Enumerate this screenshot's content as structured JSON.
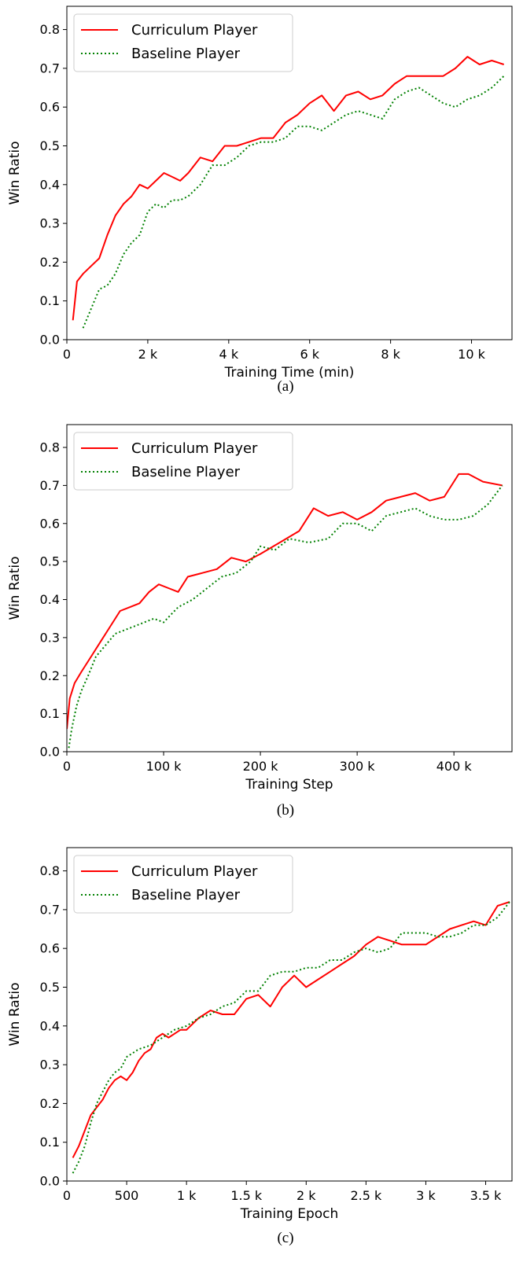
{
  "chart_data": [
    {
      "type": "line",
      "caption": "(a)",
      "xlabel": "Training Time (min)",
      "ylabel": "Win Ratio",
      "xlim": [
        0,
        11000
      ],
      "ylim": [
        0,
        0.86
      ],
      "xticks": [
        0,
        2000,
        4000,
        6000,
        8000,
        10000
      ],
      "xtick_labels": [
        "0",
        "2 k",
        "4 k",
        "6 k",
        "8 k",
        "10 k"
      ],
      "yticks": [
        0.0,
        0.1,
        0.2,
        0.3,
        0.4,
        0.5,
        0.6,
        0.7,
        0.8
      ],
      "ytick_labels": [
        "0.0",
        "0.1",
        "0.2",
        "0.3",
        "0.4",
        "0.5",
        "0.6",
        "0.7",
        "0.8"
      ],
      "grid": false,
      "legend_position": "top-left",
      "series": [
        {
          "name": "Curriculum Player",
          "color": "#ff0000",
          "style": "solid",
          "x": [
            150,
            250,
            400,
            600,
            800,
            1000,
            1200,
            1400,
            1600,
            1800,
            2000,
            2200,
            2400,
            2600,
            2800,
            3000,
            3300,
            3600,
            3900,
            4200,
            4500,
            4800,
            5100,
            5400,
            5700,
            6000,
            6300,
            6600,
            6900,
            7200,
            7500,
            7800,
            8100,
            8400,
            8700,
            9000,
            9300,
            9600,
            9900,
            10200,
            10500,
            10800
          ],
          "y": [
            0.05,
            0.15,
            0.17,
            0.19,
            0.21,
            0.27,
            0.32,
            0.35,
            0.37,
            0.4,
            0.39,
            0.41,
            0.43,
            0.42,
            0.41,
            0.43,
            0.47,
            0.46,
            0.5,
            0.5,
            0.51,
            0.52,
            0.52,
            0.56,
            0.58,
            0.61,
            0.63,
            0.59,
            0.63,
            0.64,
            0.62,
            0.63,
            0.66,
            0.68,
            0.68,
            0.68,
            0.68,
            0.7,
            0.73,
            0.71,
            0.72,
            0.71
          ]
        },
        {
          "name": "Baseline Player",
          "color": "#008000",
          "style": "dotted",
          "x": [
            400,
            600,
            800,
            1000,
            1200,
            1400,
            1600,
            1800,
            2000,
            2200,
            2400,
            2600,
            2800,
            3000,
            3300,
            3600,
            3900,
            4200,
            4500,
            4800,
            5100,
            5400,
            5700,
            6000,
            6300,
            6600,
            6900,
            7200,
            7500,
            7800,
            8100,
            8400,
            8700,
            9000,
            9300,
            9600,
            9900,
            10200,
            10500,
            10800
          ],
          "y": [
            0.03,
            0.08,
            0.13,
            0.14,
            0.17,
            0.22,
            0.25,
            0.27,
            0.33,
            0.35,
            0.34,
            0.36,
            0.36,
            0.37,
            0.4,
            0.45,
            0.45,
            0.47,
            0.5,
            0.51,
            0.51,
            0.52,
            0.55,
            0.55,
            0.54,
            0.56,
            0.58,
            0.59,
            0.58,
            0.57,
            0.62,
            0.64,
            0.65,
            0.63,
            0.61,
            0.6,
            0.62,
            0.63,
            0.65,
            0.68
          ]
        }
      ]
    },
    {
      "type": "line",
      "caption": "(b)",
      "xlabel": "Training Step",
      "ylabel": "Win Ratio",
      "xlim": [
        0,
        460000
      ],
      "ylim": [
        0,
        0.86
      ],
      "xticks": [
        0,
        100000,
        200000,
        300000,
        400000
      ],
      "xtick_labels": [
        "0",
        "100 k",
        "200 k",
        "300 k",
        "400 k"
      ],
      "yticks": [
        0.0,
        0.1,
        0.2,
        0.3,
        0.4,
        0.5,
        0.6,
        0.7,
        0.8
      ],
      "ytick_labels": [
        "0.0",
        "0.1",
        "0.2",
        "0.3",
        "0.4",
        "0.5",
        "0.6",
        "0.7",
        "0.8"
      ],
      "grid": false,
      "legend_position": "top-left",
      "series": [
        {
          "name": "Curriculum Player",
          "color": "#ff0000",
          "style": "solid",
          "x": [
            0,
            3000,
            8000,
            15000,
            25000,
            35000,
            45000,
            55000,
            65000,
            75000,
            85000,
            95000,
            105000,
            115000,
            125000,
            140000,
            155000,
            170000,
            185000,
            200000,
            220000,
            240000,
            255000,
            270000,
            285000,
            300000,
            315000,
            330000,
            345000,
            360000,
            375000,
            390000,
            405000,
            415000,
            430000,
            450000
          ],
          "y": [
            0.06,
            0.14,
            0.18,
            0.21,
            0.25,
            0.29,
            0.33,
            0.37,
            0.38,
            0.39,
            0.42,
            0.44,
            0.43,
            0.42,
            0.46,
            0.47,
            0.48,
            0.51,
            0.5,
            0.52,
            0.55,
            0.58,
            0.64,
            0.62,
            0.63,
            0.61,
            0.63,
            0.66,
            0.67,
            0.68,
            0.66,
            0.67,
            0.73,
            0.73,
            0.71,
            0.7
          ]
        },
        {
          "name": "Baseline Player",
          "color": "#008000",
          "style": "dotted",
          "x": [
            2000,
            5000,
            10000,
            15000,
            22000,
            30000,
            40000,
            50000,
            60000,
            70000,
            80000,
            90000,
            100000,
            115000,
            130000,
            145000,
            160000,
            175000,
            190000,
            200000,
            215000,
            230000,
            250000,
            270000,
            285000,
            300000,
            315000,
            330000,
            345000,
            360000,
            375000,
            390000,
            405000,
            420000,
            435000,
            450000
          ],
          "y": [
            0.01,
            0.06,
            0.12,
            0.16,
            0.2,
            0.25,
            0.28,
            0.31,
            0.32,
            0.33,
            0.34,
            0.35,
            0.34,
            0.38,
            0.4,
            0.43,
            0.46,
            0.47,
            0.5,
            0.54,
            0.53,
            0.56,
            0.55,
            0.56,
            0.6,
            0.6,
            0.58,
            0.62,
            0.63,
            0.64,
            0.62,
            0.61,
            0.61,
            0.62,
            0.65,
            0.7
          ]
        }
      ]
    },
    {
      "type": "line",
      "caption": "(c)",
      "xlabel": "Training Epoch",
      "ylabel": "Win Ratio",
      "xlim": [
        0,
        3720
      ],
      "ylim": [
        0,
        0.86
      ],
      "xticks": [
        0,
        500,
        1000,
        1500,
        2000,
        2500,
        3000,
        3500
      ],
      "xtick_labels": [
        "0",
        "500",
        "1 k",
        "1.5 k",
        "2 k",
        "2.5 k",
        "3 k",
        "3.5 k"
      ],
      "yticks": [
        0.0,
        0.1,
        0.2,
        0.3,
        0.4,
        0.5,
        0.6,
        0.7,
        0.8
      ],
      "ytick_labels": [
        "0.0",
        "0.1",
        "0.2",
        "0.3",
        "0.4",
        "0.5",
        "0.6",
        "0.7",
        "0.8"
      ],
      "grid": false,
      "legend_position": "top-left",
      "series": [
        {
          "name": "Curriculum Player",
          "color": "#ff0000",
          "style": "solid",
          "x": [
            50,
            100,
            150,
            200,
            250,
            300,
            350,
            400,
            450,
            500,
            550,
            600,
            650,
            700,
            750,
            800,
            850,
            900,
            950,
            1000,
            1100,
            1200,
            1300,
            1400,
            1500,
            1600,
            1700,
            1800,
            1900,
            2000,
            2100,
            2200,
            2300,
            2400,
            2500,
            2600,
            2700,
            2800,
            2900,
            3000,
            3100,
            3200,
            3300,
            3400,
            3500,
            3600,
            3700
          ],
          "y": [
            0.06,
            0.09,
            0.13,
            0.17,
            0.19,
            0.21,
            0.24,
            0.26,
            0.27,
            0.26,
            0.28,
            0.31,
            0.33,
            0.34,
            0.37,
            0.38,
            0.37,
            0.38,
            0.39,
            0.39,
            0.42,
            0.44,
            0.43,
            0.43,
            0.47,
            0.48,
            0.45,
            0.5,
            0.53,
            0.5,
            0.52,
            0.54,
            0.56,
            0.58,
            0.61,
            0.63,
            0.62,
            0.61,
            0.61,
            0.61,
            0.63,
            0.65,
            0.66,
            0.67,
            0.66,
            0.71,
            0.72
          ]
        },
        {
          "name": "Baseline Player",
          "color": "#008000",
          "style": "dotted",
          "x": [
            50,
            100,
            150,
            200,
            250,
            300,
            350,
            400,
            450,
            500,
            600,
            700,
            800,
            900,
            1000,
            1100,
            1200,
            1300,
            1400,
            1500,
            1600,
            1700,
            1800,
            1900,
            2000,
            2100,
            2200,
            2300,
            2400,
            2500,
            2600,
            2700,
            2800,
            2900,
            3000,
            3100,
            3200,
            3300,
            3400,
            3500,
            3600,
            3700
          ],
          "y": [
            0.02,
            0.05,
            0.09,
            0.15,
            0.2,
            0.23,
            0.26,
            0.28,
            0.29,
            0.32,
            0.34,
            0.35,
            0.37,
            0.39,
            0.4,
            0.42,
            0.43,
            0.45,
            0.46,
            0.49,
            0.49,
            0.53,
            0.54,
            0.54,
            0.55,
            0.55,
            0.57,
            0.57,
            0.59,
            0.6,
            0.59,
            0.6,
            0.64,
            0.64,
            0.64,
            0.63,
            0.63,
            0.64,
            0.66,
            0.66,
            0.68,
            0.72
          ]
        }
      ]
    }
  ]
}
